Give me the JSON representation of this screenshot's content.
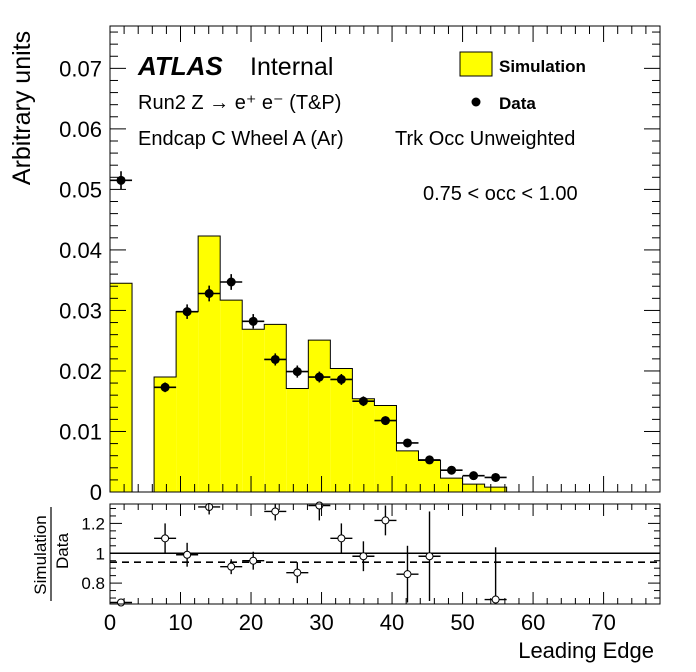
{
  "chart_data": [
    {
      "type": "histogram",
      "ylabel": "Arbitrary units",
      "ylim": [
        0,
        0.077
      ],
      "xlim": [
        0,
        78
      ],
      "yticks": [
        0,
        0.01,
        0.02,
        0.03,
        0.04,
        0.05,
        0.06,
        0.07
      ],
      "ytick_labels": [
        "0",
        "0.01",
        "0.02",
        "0.03",
        "0.04",
        "0.05",
        "0.06",
        "0.07"
      ],
      "annotations": {
        "atlas": "ATLAS",
        "internal": "Internal",
        "process": "Run2 Z → e⁺ e⁻ (T&P)",
        "region": "Endcap C Wheel A (Ar)",
        "weighting": "Trk Occ Unweighted",
        "occ_range": "0.75 < occ < 1.00"
      },
      "legend": {
        "position": "top-right",
        "entries": [
          "Simulation",
          "Data"
        ]
      },
      "series": [
        {
          "name": "Simulation",
          "color": "#ffff00",
          "bin_edges": [
            0,
            3.125,
            6.25,
            9.375,
            12.5,
            15.625,
            18.75,
            21.875,
            25,
            28.125,
            31.25,
            34.375,
            37.5,
            40.625,
            43.75,
            46.875,
            50,
            53.125,
            56.25
          ],
          "values": [
            0.0345,
            0,
            0.019,
            0.0298,
            0.0423,
            0.0317,
            0.0269,
            0.0277,
            0.0171,
            0.0251,
            0.0204,
            0.0154,
            0.0143,
            0.0068,
            0.0052,
            0.0023,
            0.0013,
            0.0008
          ]
        },
        {
          "name": "Data",
          "color": "#000000",
          "x": [
            1.5625,
            7.8125,
            10.9375,
            14.0625,
            17.1875,
            20.3125,
            23.4375,
            26.5625,
            29.6875,
            32.8125,
            35.9375,
            39.0625,
            42.1875,
            45.3125,
            48.4375,
            51.5625,
            54.6875
          ],
          "y": [
            0.0515,
            0.0173,
            0.0298,
            0.0328,
            0.0347,
            0.0282,
            0.0219,
            0.0199,
            0.019,
            0.0186,
            0.015,
            0.0118,
            0.0081,
            0.0053,
            0.0036,
            0.0027,
            0.0024
          ],
          "yerr": [
            0.0015,
            0.0008,
            0.0012,
            0.0013,
            0.0013,
            0.0012,
            0.001,
            0.001,
            0.0009,
            0.0009,
            0.0008,
            0.0007,
            0.0005,
            0.0004,
            0.0003,
            0.0003,
            0.0003
          ]
        }
      ]
    },
    {
      "type": "scatter",
      "ylabel_top": "Simulation",
      "ylabel_bottom": "Data",
      "xlabel": "Leading Edge",
      "xlim": [
        0,
        78
      ],
      "ylim": [
        0.66,
        1.33
      ],
      "yticks": [
        0.8,
        1,
        1.2
      ],
      "ytick_labels": [
        "0.8",
        "1",
        "1.2"
      ],
      "xticks": [
        0,
        10,
        20,
        30,
        40,
        50,
        60,
        70
      ],
      "xtick_labels": [
        "0",
        "10",
        "20",
        "30",
        "40",
        "50",
        "60",
        "70"
      ],
      "reference_lines": {
        "solid": 1.0,
        "dashed": 0.94
      },
      "series": [
        {
          "name": "Simulation/Data",
          "x": [
            1.5625,
            7.8125,
            10.9375,
            14.0625,
            17.1875,
            20.3125,
            23.4375,
            26.5625,
            29.6875,
            32.8125,
            35.9375,
            39.0625,
            42.1875,
            45.3125,
            54.6875
          ],
          "y": [
            0.67,
            1.1,
            0.99,
            1.31,
            0.91,
            0.95,
            1.28,
            0.87,
            1.32,
            1.1,
            0.98,
            1.22,
            0.86,
            0.98,
            0.69
          ],
          "yerr": [
            0.0,
            0.1,
            0.08,
            0.05,
            0.05,
            0.06,
            0.06,
            0.07,
            0.1,
            0.1,
            0.1,
            0.1,
            0.19,
            0.3,
            0.35
          ]
        }
      ]
    }
  ]
}
